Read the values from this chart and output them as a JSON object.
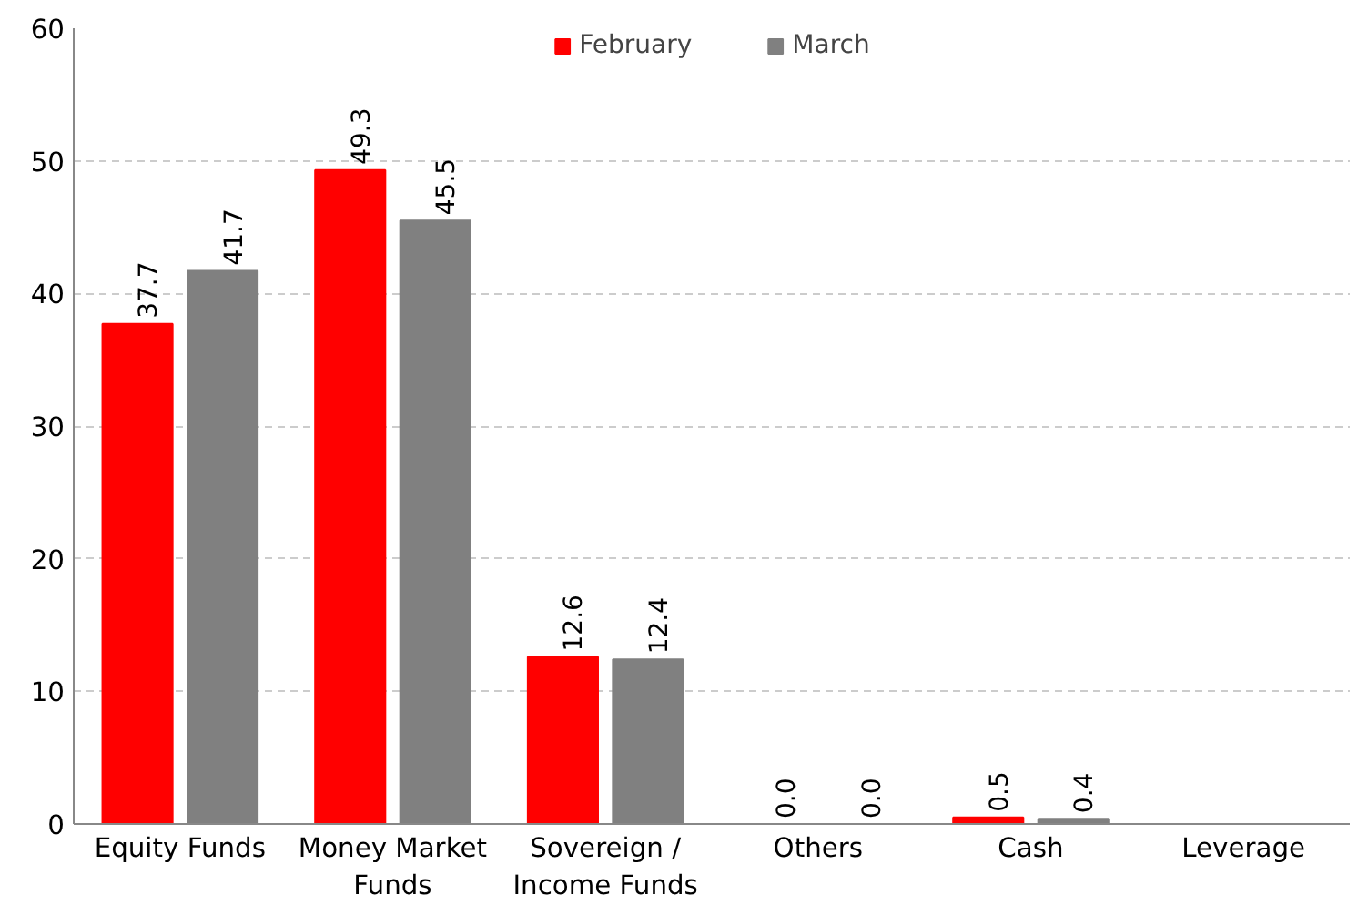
{
  "chart_data": {
    "type": "bar",
    "categories": [
      "Equity Funds",
      "Money Market\nFunds",
      "Sovereign /\nIncome Funds",
      "Others",
      "Cash",
      "Leverage"
    ],
    "series": [
      {
        "name": "February",
        "color": "#ff0000",
        "values": [
          37.7,
          49.3,
          12.6,
          0.0,
          0.5,
          null
        ],
        "value_labels": [
          "37.7",
          "49.3",
          "12.6",
          "0.0",
          "0.5",
          null
        ]
      },
      {
        "name": "March",
        "color": "#808080",
        "values": [
          41.7,
          45.5,
          12.4,
          0.0,
          0.4,
          null
        ],
        "value_labels": [
          "41.7",
          "45.5",
          "12.4",
          "0.0",
          "0.4",
          null
        ]
      }
    ],
    "ylim": [
      0,
      60
    ],
    "yticks": [
      0,
      10,
      20,
      30,
      40,
      50,
      60
    ],
    "grid": "y",
    "legend": "top"
  }
}
